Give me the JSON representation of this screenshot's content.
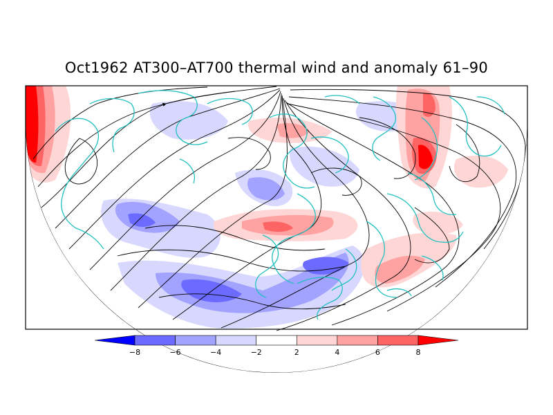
{
  "title": "Oct1962 AT300–AT700 thermal wind and anomaly 61–90",
  "colorbar": {
    "ticks": [
      "−8",
      "−6",
      "−4",
      "−2",
      "2",
      "4",
      "6",
      "8"
    ],
    "bins": [
      {
        "color": "#0000ff"
      },
      {
        "color": "#6b6bff"
      },
      {
        "color": "#a2a2ff"
      },
      {
        "color": "#d8d8ff"
      },
      {
        "color": "#ffffff"
      },
      {
        "color": "#ffd6d6"
      },
      {
        "color": "#ffa2a2"
      },
      {
        "color": "#ff6464"
      },
      {
        "color": "#ff0000"
      }
    ]
  },
  "colors": {
    "coastline": "#20c0c0",
    "streamline": "#000000",
    "frame": "#000000"
  }
}
